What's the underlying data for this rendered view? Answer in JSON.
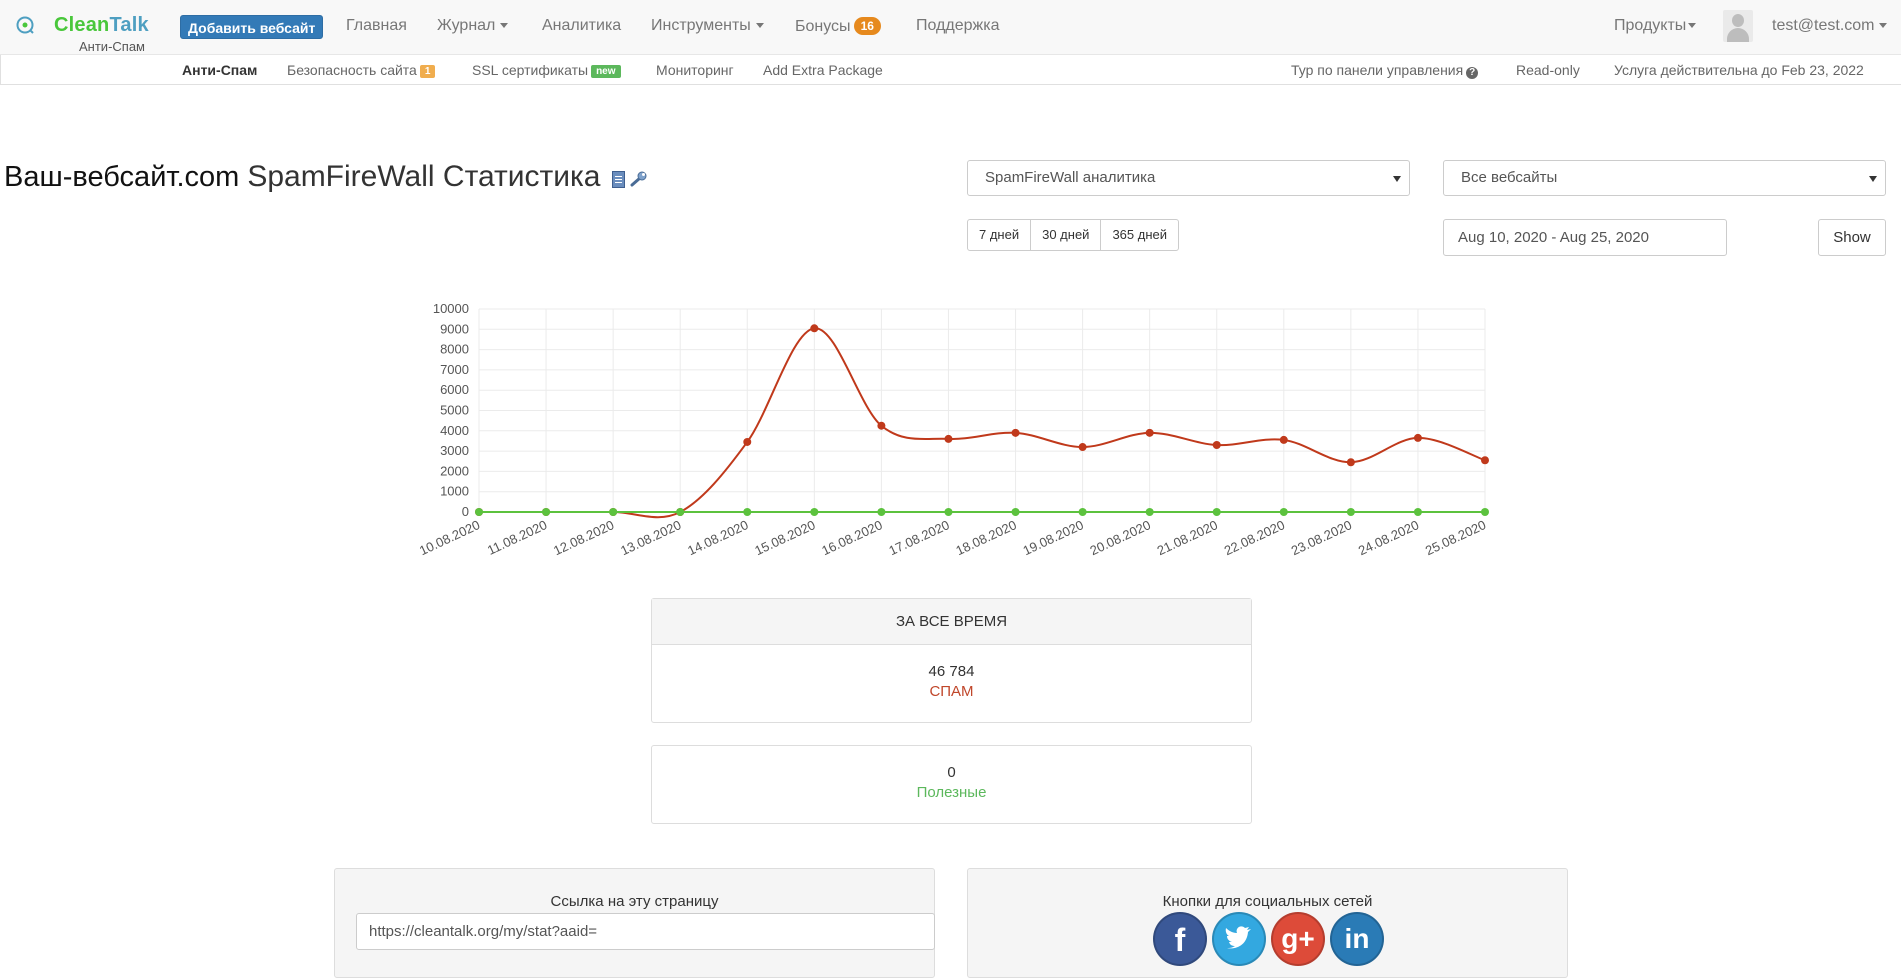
{
  "brand": {
    "name_part1": "Clean",
    "name_part2": "Talk",
    "subtitle": "Анти-Спам",
    "color_green": "#49c73b",
    "color_blue": "#4e9fc1"
  },
  "navbar": {
    "add_website": "Добавить вебсайт",
    "links": [
      "Главная",
      "Журнал",
      "Аналитика",
      "Инструменты",
      "Бонусы",
      "Поддержка"
    ],
    "bonus_count": "16",
    "products": "Продукты",
    "user_email": "test@test.com"
  },
  "subnav": {
    "items": [
      "Анти-Спам",
      "Безопасность сайта",
      "SSL сертификаты",
      "Мониторинг",
      "Add Extra Package"
    ],
    "security_badge": "1",
    "ssl_badge": "new",
    "tour": "Тур по панели управления",
    "readonly": "Read-only",
    "service_valid": "Услуга действительна до Feb 23, 2022"
  },
  "header": {
    "site": "Ваш-вебсайт.com",
    "title": "SpamFireWall Статистика"
  },
  "filters": {
    "analytics_select": "SpamFireWall аналитика",
    "sites_select": "Все вебсайты",
    "ranges": [
      "7 дней",
      "30 дней",
      "365 дней"
    ],
    "date_range": "Aug 10, 2020 - Aug 25, 2020",
    "show": "Show"
  },
  "chart_data": {
    "type": "line",
    "x": [
      "10.08.2020",
      "11.08.2020",
      "12.08.2020",
      "13.08.2020",
      "14.08.2020",
      "15.08.2020",
      "16.08.2020",
      "17.08.2020",
      "18.08.2020",
      "19.08.2020",
      "20.08.2020",
      "21.08.2020",
      "22.08.2020",
      "23.08.2020",
      "24.08.2020",
      "25.08.2020"
    ],
    "ylim": [
      0,
      10000
    ],
    "yticks": [
      0,
      1000,
      2000,
      3000,
      4000,
      5000,
      6000,
      7000,
      8000,
      9000,
      10000
    ],
    "grid": true,
    "series": [
      {
        "values": [
          0,
          0,
          0,
          0,
          3450,
          9050,
          4250,
          3600,
          3900,
          3200,
          3900,
          3300,
          3550,
          2450,
          3650,
          2550
        ],
        "color": "#c0391b"
      },
      {
        "values": [
          0,
          0,
          0,
          0,
          0,
          0,
          0,
          0,
          0,
          0,
          0,
          0,
          0,
          0,
          0,
          0
        ],
        "color": "#5cc23e"
      }
    ]
  },
  "stats": {
    "all_time_header": "ЗА ВСЕ ВРЕМЯ",
    "spam_value": "46 784",
    "spam_label": "СПАМ",
    "good_value": "0",
    "good_label": "Полезные"
  },
  "share": {
    "link_title": "Ссылка на эту страницу",
    "link_value": "https://cleantalk.org/my/stat?aaid=",
    "social_title": "Кнопки для социальных сетей",
    "social_icons": [
      "facebook-icon",
      "twitter-icon",
      "google-plus-icon",
      "linkedin-icon"
    ]
  }
}
